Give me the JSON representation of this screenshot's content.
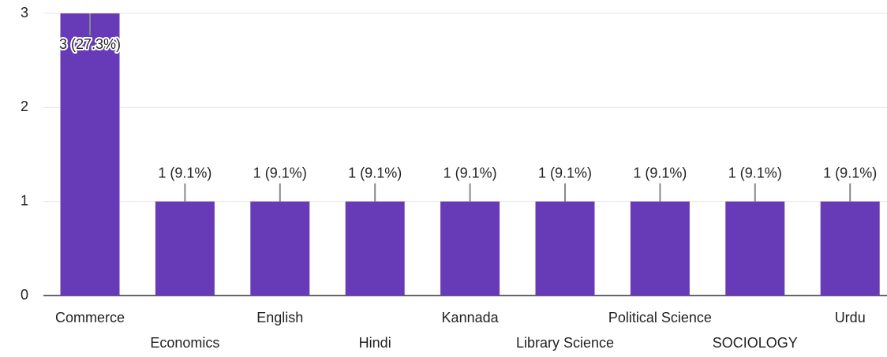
{
  "chart_data": {
    "type": "bar",
    "categories": [
      "Commerce",
      "Economics",
      "English",
      "Hindi",
      "Kannada",
      "Library Science",
      "Political Science",
      "SOCIOLOGY",
      "Urdu"
    ],
    "values": [
      3,
      1,
      1,
      1,
      1,
      1,
      1,
      1,
      1
    ],
    "value_labels": [
      "3 (27.3%)",
      "1 (9.1%)",
      "1 (9.1%)",
      "1 (9.1%)",
      "1 (9.1%)",
      "1 (9.1%)",
      "1 (9.1%)",
      "1 (9.1%)",
      "1 (9.1%)"
    ],
    "color": "#673ab7",
    "ylim": [
      0,
      3
    ],
    "yticks": [
      0,
      1,
      2,
      3
    ],
    "grid": true
  }
}
